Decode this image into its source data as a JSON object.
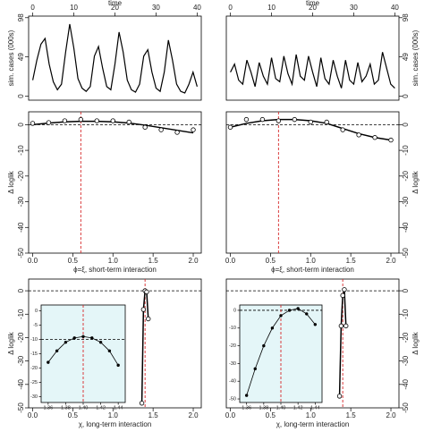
{
  "chart_data": [
    {
      "type": "line",
      "xaxis": "top",
      "yaxis": "left",
      "xlabel": "time",
      "ylabel": "sim. cases (000s)",
      "x": [
        0,
        1,
        2,
        3,
        4,
        5,
        6,
        7,
        8,
        9,
        10,
        11,
        12,
        13,
        14,
        15,
        16,
        17,
        18,
        19,
        20,
        21,
        22,
        23,
        24,
        25,
        26,
        27,
        28,
        29,
        30,
        31,
        32,
        33,
        34,
        35,
        36,
        37,
        38,
        39,
        40
      ],
      "values": [
        20,
        45,
        65,
        72,
        40,
        18,
        8,
        15,
        55,
        90,
        60,
        22,
        10,
        6,
        12,
        50,
        62,
        35,
        12,
        8,
        40,
        80,
        55,
        20,
        8,
        5,
        15,
        50,
        58,
        30,
        10,
        6,
        30,
        70,
        45,
        15,
        6,
        4,
        15,
        30,
        12
      ],
      "xlim": [
        -1,
        41
      ],
      "xticks": [
        0,
        10,
        20,
        30,
        40
      ],
      "ylim": [
        -5,
        100
      ],
      "yticks": [
        0,
        49,
        98
      ],
      "color": "#000000"
    },
    {
      "type": "line",
      "xaxis": "top",
      "yaxis": "right",
      "xlabel": "time",
      "ylabel": "sim. cases (000s)",
      "x": [
        0,
        1,
        2,
        3,
        4,
        5,
        6,
        7,
        8,
        9,
        10,
        11,
        12,
        13,
        14,
        15,
        16,
        17,
        18,
        19,
        20,
        21,
        22,
        23,
        24,
        25,
        26,
        27,
        28,
        29,
        30,
        31,
        32,
        33,
        34,
        35,
        36,
        37,
        38,
        39,
        40
      ],
      "values": [
        30,
        40,
        20,
        15,
        45,
        30,
        12,
        42,
        25,
        15,
        48,
        22,
        18,
        50,
        28,
        15,
        52,
        25,
        20,
        50,
        30,
        12,
        48,
        22,
        15,
        45,
        25,
        10,
        45,
        20,
        15,
        42,
        18,
        25,
        40,
        15,
        20,
        55,
        35,
        15,
        10
      ],
      "xlim": [
        -1,
        41
      ],
      "xticks": [
        0,
        10,
        20,
        30,
        40
      ],
      "ylim": [
        -5,
        100
      ],
      "yticks": [
        0,
        49,
        98
      ],
      "color": "#000000"
    },
    {
      "type": "scatter",
      "xaxis": "bottom",
      "yaxis": "left",
      "xlabel": "ϕ=ξ, short-term interaction",
      "ylabel": "Δ loglik",
      "x": [
        0,
        0.2,
        0.4,
        0.6,
        0.8,
        1.0,
        1.2,
        1.4,
        1.6,
        1.8,
        2.0
      ],
      "values": [
        0.5,
        0.8,
        1.5,
        2,
        1.5,
        1.5,
        1,
        -1,
        -2,
        -3,
        -2
      ],
      "fit": [
        0,
        0.6,
        1.1,
        1.3,
        1.3,
        1.1,
        0.6,
        -0.2,
        -1.2,
        -2.2,
        -3.2
      ],
      "xlim": [
        -0.05,
        2.1
      ],
      "xticks": [
        {
          "value": 0,
          "label": "0.0"
        },
        0.5,
        {
          "value": 1,
          "label": "1.0"
        },
        1.5,
        {
          "value": 2,
          "label": "2.0"
        }
      ],
      "ylim": [
        -50,
        5
      ],
      "yticks": [
        0,
        -10,
        -20,
        -30,
        -40,
        -50
      ],
      "vline": 0.6,
      "hline": 0,
      "color": "#000000",
      "vline_color": "#d62728"
    },
    {
      "type": "scatter",
      "xaxis": "bottom",
      "yaxis": "right",
      "xlabel": "ϕ=ξ, short-term interaction",
      "ylabel": "Δ loglik",
      "x": [
        0,
        0.2,
        0.4,
        0.6,
        0.8,
        1.0,
        1.2,
        1.4,
        1.6,
        1.8,
        2.0
      ],
      "values": [
        -1,
        2,
        2,
        1.5,
        2,
        1,
        1,
        -2,
        -4,
        -5,
        -6
      ],
      "fit": [
        -1,
        0.5,
        1.5,
        2,
        2,
        1.5,
        0.5,
        -1.5,
        -3.5,
        -5,
        -6
      ],
      "xlim": [
        -0.05,
        2.1
      ],
      "xticks": [
        {
          "value": 0,
          "label": "0.0"
        },
        0.5,
        {
          "value": 1,
          "label": "1.0"
        },
        1.5,
        {
          "value": 2,
          "label": "2.0"
        }
      ],
      "ylim": [
        -50,
        5
      ],
      "yticks": [
        0,
        -10,
        -20,
        -30,
        -40,
        -50
      ],
      "vline": 0.6,
      "hline": 0,
      "color": "#000000",
      "vline_color": "#d62728"
    },
    {
      "type": "scatter",
      "xaxis": "bottom",
      "yaxis": "left",
      "xlabel": "χ, long-term interaction",
      "ylabel": "Δ loglik",
      "x": [
        1.36,
        1.38,
        1.4,
        1.42,
        1.44
      ],
      "values": [
        -48,
        -8,
        0,
        -0.5,
        -12
      ],
      "fit": [
        -48,
        -8,
        0,
        -0.5,
        -12
      ],
      "xlim": [
        -0.05,
        2.1
      ],
      "xticks": [
        {
          "value": 0,
          "label": "0.0"
        },
        0.5,
        {
          "value": 1,
          "label": "1.0"
        },
        1.5,
        {
          "value": 2,
          "label": "2.0"
        }
      ],
      "ylim": [
        -50,
        5
      ],
      "yticks": [
        0,
        -10,
        -20,
        -30,
        -40,
        -50
      ],
      "vline": 1.4,
      "hline": 0,
      "color": "#000000",
      "vline_color": "#d62728",
      "inset": {
        "type": "scatter",
        "x": [
          1.36,
          1.37,
          1.38,
          1.39,
          1.4,
          1.41,
          1.42,
          1.43,
          1.44
        ],
        "values": [
          -18,
          -14,
          -11,
          -9.5,
          -9,
          -9.5,
          -11,
          -14,
          -19
        ],
        "fit": [
          -18,
          -14,
          -11,
          -9.5,
          -9,
          -9.5,
          -11,
          -14,
          -19
        ],
        "xlim": [
          1.352,
          1.448
        ],
        "xticks": [
          1.36,
          1.38,
          {
            "value": 1.4,
            "label": "1.40"
          },
          1.42,
          1.44
        ],
        "ylim": [
          -32,
          2
        ],
        "yticks": [
          0,
          -5,
          -10,
          -15,
          -20,
          -25,
          -30
        ],
        "vline": 1.4,
        "hline": -10,
        "background": "#e4f6f8"
      }
    },
    {
      "type": "scatter",
      "xaxis": "bottom",
      "yaxis": "right",
      "xlabel": "χ, long-term interaction",
      "ylabel": "Δ loglik",
      "x": [
        1.36,
        1.38,
        1.4,
        1.42,
        1.44
      ],
      "values": [
        -45,
        -15,
        -2,
        0.5,
        -15
      ],
      "fit": [
        -45,
        -15,
        -2,
        0.5,
        -15
      ],
      "xlim": [
        -0.05,
        2.1
      ],
      "xticks": [
        {
          "value": 0,
          "label": "0.0"
        },
        0.5,
        {
          "value": 1,
          "label": "1.0"
        },
        1.5,
        {
          "value": 2,
          "label": "2.0"
        }
      ],
      "ylim": [
        -50,
        5
      ],
      "yticks": [
        0,
        -10,
        -20,
        -30,
        -40,
        -50
      ],
      "vline": 1.4,
      "hline": 0,
      "color": "#000000",
      "vline_color": "#d62728",
      "inset": {
        "type": "scatter",
        "x": [
          1.36,
          1.37,
          1.38,
          1.39,
          1.4,
          1.41,
          1.42,
          1.43,
          1.44
        ],
        "values": [
          -48,
          -33,
          -20,
          -10,
          -3,
          0,
          1,
          -2,
          -8
        ],
        "fit": [
          -48,
          -33,
          -20,
          -10,
          -3,
          0,
          1,
          -2,
          -8
        ],
        "xlim": [
          1.352,
          1.448
        ],
        "xticks": [
          1.36,
          1.38,
          {
            "value": 1.4,
            "label": "1.40"
          },
          1.42,
          1.44
        ],
        "ylim": [
          -52,
          3
        ],
        "yticks": [
          0,
          -10,
          -20,
          -30,
          -40,
          -50
        ],
        "vline": 1.4,
        "hline": 0,
        "background": "#e4f6f8"
      }
    }
  ]
}
